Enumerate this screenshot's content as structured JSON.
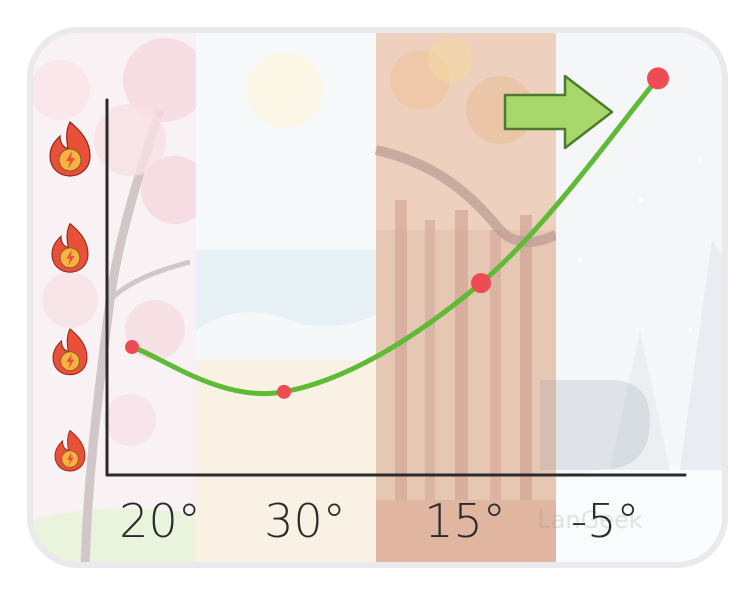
{
  "chart_data": {
    "type": "line",
    "categories": [
      "20°",
      "30°",
      "15°",
      "-5°"
    ],
    "values": [
      1,
      0.65,
      1.5,
      3.1
    ],
    "ylim": [
      0,
      3.4
    ],
    "title": "",
    "xlabel": "",
    "ylabel": "",
    "grid": false,
    "legend": "none",
    "y_axis_icons": [
      "fire-icon",
      "fire-icon",
      "fire-icon",
      "fire-icon"
    ]
  },
  "watermark": "LanGeek",
  "colors": {
    "line": "#5fba36",
    "point": "#ee4b52",
    "arrow": "#a6d86c",
    "arrow_stroke": "#4f7a2d",
    "spring": "#f3dfe4",
    "summer": "#eef3f5",
    "autumn": "#c98d6b",
    "winter": "#f3f5f8",
    "flame_outer": "#e8503a",
    "flame_inner": "#f7b341"
  }
}
